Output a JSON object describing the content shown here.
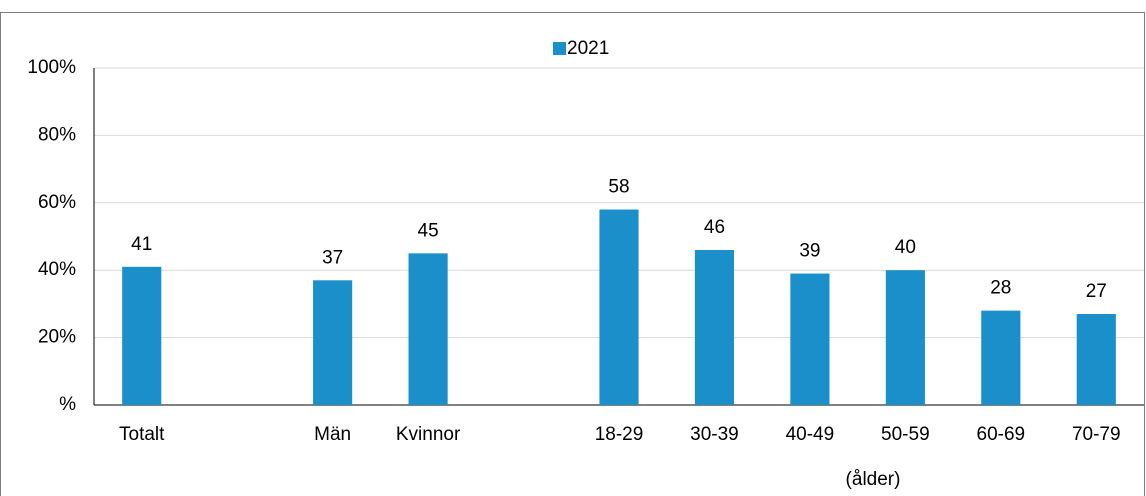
{
  "chart_data": {
    "type": "bar",
    "categories": [
      "Totalt",
      null,
      "Män",
      "Kvinnor",
      null,
      "18-29",
      "30-39",
      "40-49",
      "50-59",
      "60-69",
      "70-79"
    ],
    "series": [
      {
        "name": "2021",
        "color": "#1a8fc9",
        "values": [
          41,
          null,
          37,
          45,
          null,
          58,
          46,
          39,
          40,
          28,
          27
        ]
      }
    ],
    "ylim": [
      0,
      100
    ],
    "yticks": [
      {
        "value": 0,
        "label": "%"
      },
      {
        "value": 20,
        "label": "20%"
      },
      {
        "value": 40,
        "label": "40%"
      },
      {
        "value": 60,
        "label": "60%"
      },
      {
        "value": 80,
        "label": "80%"
      },
      {
        "value": 100,
        "label": "100%"
      }
    ],
    "grid": true,
    "legend": "top",
    "x_annotation": "(ålder)"
  }
}
